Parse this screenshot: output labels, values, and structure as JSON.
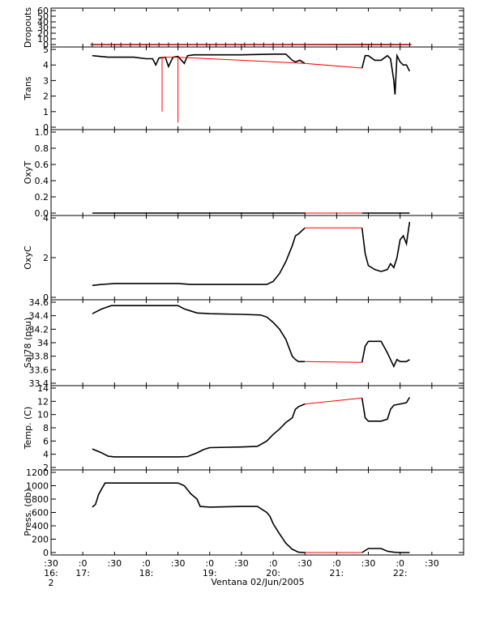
{
  "chart_data": [
    {
      "type": "line",
      "ylabel": "Dropouts",
      "ylim": [
        0,
        60
      ],
      "yticks": [
        0,
        10,
        20,
        30,
        40,
        50,
        60
      ],
      "series": [
        {
          "color": "#000000",
          "marker": "plus",
          "x": [
            17.15,
            17.3,
            17.45,
            17.6,
            17.75,
            17.9,
            18.05,
            18.2,
            18.35,
            18.5,
            18.65,
            18.8,
            18.95,
            19.1,
            19.25,
            19.4,
            19.55,
            19.7,
            19.85,
            20,
            20.15,
            20.3,
            20.5,
            21.4,
            21.55,
            21.7,
            21.85,
            22.0,
            22.15
          ],
          "y": [
            0,
            0,
            0,
            0,
            0,
            0,
            0,
            0,
            0,
            0,
            0,
            0,
            0,
            0,
            0,
            0,
            0,
            0,
            0,
            0,
            0,
            0,
            0,
            0,
            0,
            0,
            0,
            0,
            0
          ]
        },
        {
          "color": "#ff0000",
          "x": [
            17.15,
            20.5,
            21.4,
            22.15
          ],
          "y": [
            0,
            0,
            -0.5,
            0
          ]
        }
      ]
    },
    {
      "type": "line",
      "ylabel": "Trans",
      "ylim": [
        0,
        5
      ],
      "yticks": [
        0,
        1,
        2,
        3,
        4,
        5
      ],
      "series": [
        {
          "color": "#000000",
          "x": [
            17.15,
            17.4,
            17.8,
            18.0,
            18.1,
            18.15,
            18.2,
            18.3,
            18.35,
            18.42,
            18.5,
            18.6,
            18.65,
            18.75,
            19.0,
            19.5,
            20.0,
            20.2,
            20.3,
            20.35,
            20.42,
            20.5
          ],
          "y": [
            4.6,
            4.5,
            4.5,
            4.4,
            4.4,
            4.0,
            4.45,
            4.5,
            3.9,
            4.5,
            4.55,
            4.1,
            4.6,
            4.65,
            4.65,
            4.65,
            4.7,
            4.7,
            4.3,
            4.2,
            4.3,
            4.1
          ]
        },
        {
          "color": "#ff0000",
          "x": [
            18.25,
            18.25,
            18.25,
            18.5,
            18.5,
            18.5,
            20.5,
            21.4
          ],
          "y": [
            4.5,
            1.0,
            4.5,
            4.5,
            0.3,
            4.5,
            4.1,
            3.8
          ]
        },
        {
          "color": "#000000",
          "x": [
            21.4,
            21.45,
            21.5,
            21.6,
            21.7,
            21.8,
            21.85,
            21.9,
            21.92,
            21.95,
            22.0,
            22.05,
            22.1,
            22.15
          ],
          "y": [
            3.8,
            4.6,
            4.6,
            4.3,
            4.3,
            4.6,
            4.4,
            3.0,
            2.1,
            4.6,
            4.2,
            4.0,
            4.0,
            3.6
          ]
        }
      ]
    },
    {
      "type": "line",
      "ylabel": "OxyT",
      "ylim": [
        0,
        1.0
      ],
      "yticks": [
        0.0,
        0.2,
        0.4,
        0.6,
        0.8,
        1.0
      ],
      "series": [
        {
          "color": "#000000",
          "x": [
            17.15,
            20.5
          ],
          "y": [
            0,
            0
          ]
        },
        {
          "color": "#ff0000",
          "x": [
            20.5,
            21.4
          ],
          "y": [
            0,
            0
          ]
        },
        {
          "color": "#000000",
          "x": [
            21.4,
            22.15
          ],
          "y": [
            0,
            0
          ]
        }
      ]
    },
    {
      "type": "line",
      "ylabel": "OxyC",
      "ylim": [
        0,
        4
      ],
      "yticks": [
        0,
        2,
        4
      ],
      "series": [
        {
          "color": "#000000",
          "x": [
            17.15,
            17.3,
            17.5,
            18.0,
            18.5,
            18.7,
            19.0,
            19.5,
            19.9,
            20.0,
            20.1,
            20.2,
            20.3,
            20.35,
            20.4,
            20.5
          ],
          "y": [
            0.6,
            0.65,
            0.7,
            0.7,
            0.7,
            0.65,
            0.65,
            0.65,
            0.65,
            0.8,
            1.2,
            1.8,
            2.6,
            3.1,
            3.2,
            3.5
          ]
        },
        {
          "color": "#ff0000",
          "x": [
            20.5,
            21.4
          ],
          "y": [
            3.5,
            3.5
          ]
        },
        {
          "color": "#000000",
          "x": [
            21.4,
            21.45,
            21.5,
            21.6,
            21.7,
            21.8,
            21.85,
            21.9,
            21.95,
            22.0,
            22.05,
            22.1,
            22.15
          ],
          "y": [
            3.5,
            2.2,
            1.6,
            1.4,
            1.3,
            1.4,
            1.7,
            1.5,
            2.0,
            2.9,
            3.1,
            2.7,
            3.8
          ]
        }
      ]
    },
    {
      "type": "line",
      "ylabel": "Sal78 (psu)",
      "ylim": [
        33.4,
        34.6
      ],
      "yticks": [
        33.4,
        33.6,
        33.8,
        34.0,
        34.2,
        34.4,
        34.6
      ],
      "series": [
        {
          "color": "#000000",
          "x": [
            17.15,
            17.3,
            17.45,
            17.6,
            18.0,
            18.5,
            18.6,
            18.7,
            18.8,
            19.0,
            19.5,
            19.8,
            19.9,
            20.0,
            20.1,
            20.2,
            20.3,
            20.35,
            20.4,
            20.5
          ],
          "y": [
            34.43,
            34.5,
            34.55,
            34.55,
            34.55,
            34.55,
            34.5,
            34.47,
            34.44,
            34.43,
            34.42,
            34.41,
            34.38,
            34.3,
            34.2,
            34.05,
            33.8,
            33.75,
            33.72,
            33.72
          ]
        },
        {
          "color": "#ff0000",
          "x": [
            20.5,
            21.4
          ],
          "y": [
            33.72,
            33.71
          ]
        },
        {
          "color": "#000000",
          "x": [
            21.4,
            21.45,
            21.5,
            21.55,
            21.7,
            21.8,
            21.85,
            21.9,
            21.95,
            22.0,
            22.1,
            22.15
          ],
          "y": [
            33.71,
            33.95,
            34.02,
            34.02,
            34.02,
            33.85,
            33.75,
            33.65,
            33.75,
            33.72,
            33.72,
            33.75
          ]
        }
      ]
    },
    {
      "type": "line",
      "ylabel": "Temp. (C)",
      "ylim": [
        2,
        14
      ],
      "yticks": [
        2,
        4,
        6,
        8,
        10,
        12,
        14
      ],
      "series": [
        {
          "color": "#000000",
          "x": [
            17.15,
            17.3,
            17.4,
            17.5,
            18.0,
            18.5,
            18.65,
            18.8,
            18.9,
            19.0,
            19.5,
            19.75,
            19.9,
            20.0,
            20.1,
            20.2,
            20.3,
            20.35,
            20.4,
            20.5
          ],
          "y": [
            4.8,
            4.2,
            3.7,
            3.6,
            3.6,
            3.6,
            3.65,
            4.2,
            4.7,
            5.0,
            5.1,
            5.2,
            6.0,
            7.0,
            7.8,
            8.8,
            9.5,
            10.8,
            11.2,
            11.6
          ]
        },
        {
          "color": "#ff0000",
          "x": [
            20.5,
            21.4
          ],
          "y": [
            11.6,
            12.5
          ]
        },
        {
          "color": "#000000",
          "x": [
            21.4,
            21.45,
            21.5,
            21.7,
            21.8,
            21.85,
            21.9,
            21.95,
            22.0,
            22.1,
            22.15
          ],
          "y": [
            12.5,
            9.5,
            9.0,
            9.0,
            9.3,
            10.8,
            11.4,
            11.5,
            11.6,
            11.8,
            12.6
          ]
        }
      ]
    },
    {
      "type": "line",
      "ylabel": "Press. (db)",
      "ylim": [
        0,
        1200
      ],
      "yticks": [
        0,
        200,
        400,
        600,
        800,
        1000,
        1200
      ],
      "series": [
        {
          "color": "#000000",
          "x": [
            17.15,
            17.2,
            17.25,
            17.35,
            17.5,
            18.0,
            18.5,
            18.6,
            18.7,
            18.8,
            18.85,
            19.0,
            19.5,
            19.75,
            19.9,
            19.95,
            20.0,
            20.1,
            20.2,
            20.3,
            20.4,
            20.5
          ],
          "y": [
            680,
            720,
            870,
            1040,
            1040,
            1040,
            1040,
            1000,
            880,
            800,
            690,
            680,
            690,
            690,
            600,
            540,
            430,
            280,
            140,
            50,
            5,
            0
          ]
        },
        {
          "color": "#ff0000",
          "x": [
            20.5,
            21.4
          ],
          "y": [
            0,
            0
          ]
        },
        {
          "color": "#000000",
          "x": [
            21.4,
            21.5,
            21.7,
            21.8,
            21.9,
            22.0,
            22.15
          ],
          "y": [
            0,
            60,
            60,
            20,
            5,
            0,
            0
          ]
        }
      ]
    }
  ],
  "x_axis": {
    "xlim": [
      16.5,
      23.0
    ],
    "ticks": [
      {
        "x": 16.5,
        "line1": ":30",
        "line2": "16:",
        "line3": "2"
      },
      {
        "x": 17.0,
        "line1": ":0",
        "line2": "17:",
        "line3": ""
      },
      {
        "x": 17.5,
        "line1": ":30",
        "line2": "",
        "line3": ""
      },
      {
        "x": 18.0,
        "line1": ":0",
        "line2": "18:",
        "line3": ""
      },
      {
        "x": 18.5,
        "line1": ":30",
        "line2": "",
        "line3": ""
      },
      {
        "x": 19.0,
        "line1": ":0",
        "line2": "19:",
        "line3": ""
      },
      {
        "x": 19.5,
        "line1": ":30",
        "line2": "",
        "line3": ""
      },
      {
        "x": 20.0,
        "line1": ":0",
        "line2": "20:",
        "line3": ""
      },
      {
        "x": 20.5,
        "line1": ":30",
        "line2": "",
        "line3": ""
      },
      {
        "x": 21.0,
        "line1": ":0",
        "line2": "21:",
        "line3": ""
      },
      {
        "x": 21.5,
        "line1": ":30",
        "line2": "",
        "line3": ""
      },
      {
        "x": 22.0,
        "line1": ":0",
        "line2": "22:",
        "line3": ""
      },
      {
        "x": 22.5,
        "line1": ":30",
        "line2": "",
        "line3": ""
      }
    ],
    "caption": "Ventana 02/Jun/2005"
  }
}
